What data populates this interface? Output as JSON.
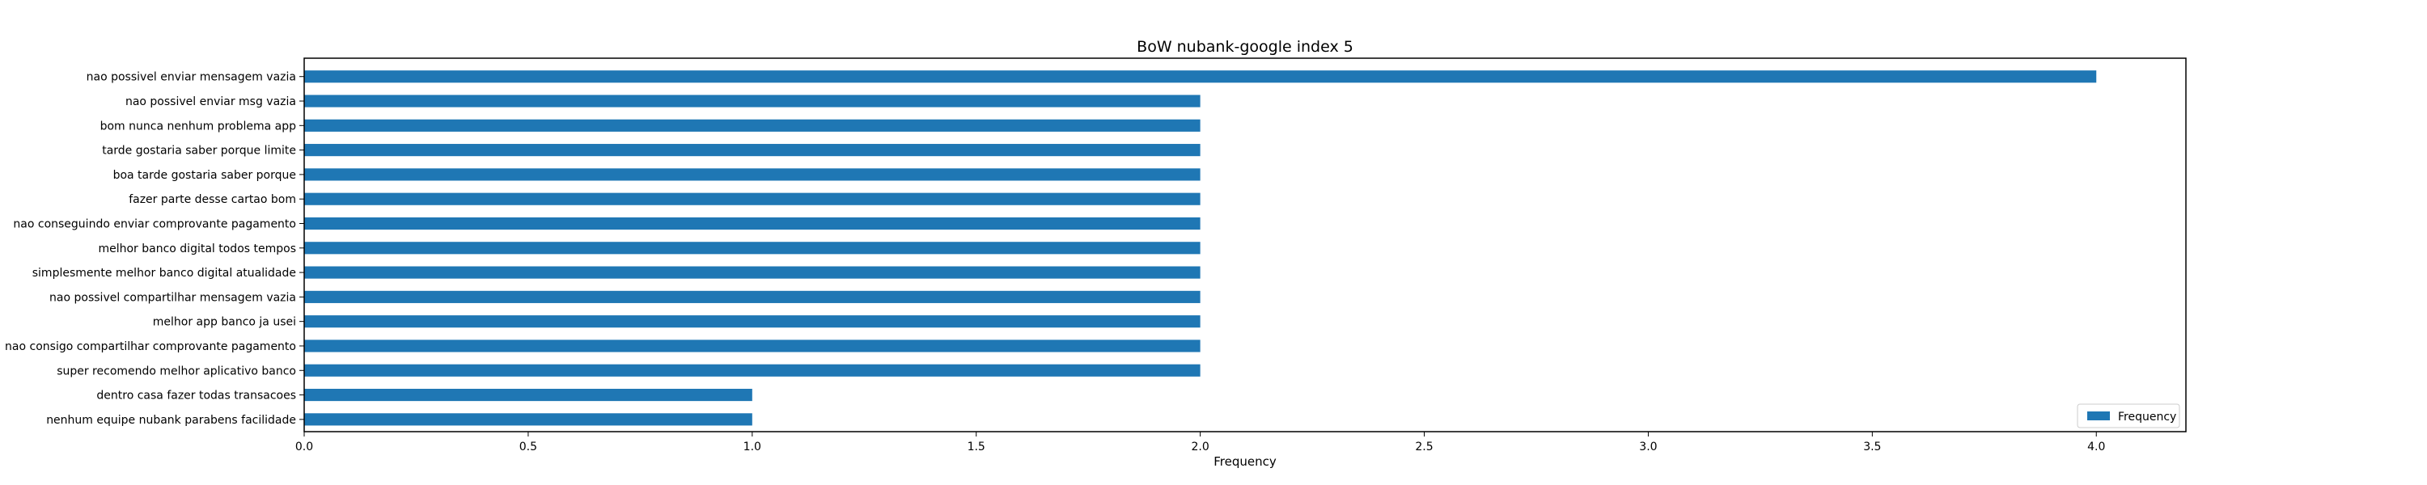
{
  "chart_data": {
    "type": "bar",
    "orientation": "horizontal",
    "title": "BoW nubank-google index 5",
    "xlabel": "Frequency",
    "ylabel": "",
    "xlim": [
      0,
      4.2
    ],
    "xticks": [
      "0.0",
      "0.5",
      "1.0",
      "1.5",
      "2.0",
      "2.5",
      "3.0",
      "3.5",
      "4.0"
    ],
    "grid": false,
    "legend_position": "lower-right",
    "categories": [
      "nao possivel enviar mensagem vazia",
      "nao possivel enviar msg vazia",
      "bom nunca nenhum problema app",
      "tarde gostaria saber porque limite",
      "boa tarde gostaria saber porque",
      "fazer parte desse cartao bom",
      "nao conseguindo enviar comprovante pagamento",
      "melhor banco digital todos tempos",
      "simplesmente melhor banco digital atualidade",
      "nao possivel compartilhar mensagem vazia",
      "melhor app banco ja usei",
      "nao consigo compartilhar comprovante pagamento",
      "super recomendo melhor aplicativo banco",
      "dentro casa fazer todas transacoes",
      "nenhum equipe nubank parabens facilidade"
    ],
    "series": [
      {
        "name": "Frequency",
        "color": "#1f77b4",
        "values": [
          4,
          2,
          2,
          2,
          2,
          2,
          2,
          2,
          2,
          2,
          2,
          2,
          2,
          1,
          1
        ]
      }
    ]
  }
}
